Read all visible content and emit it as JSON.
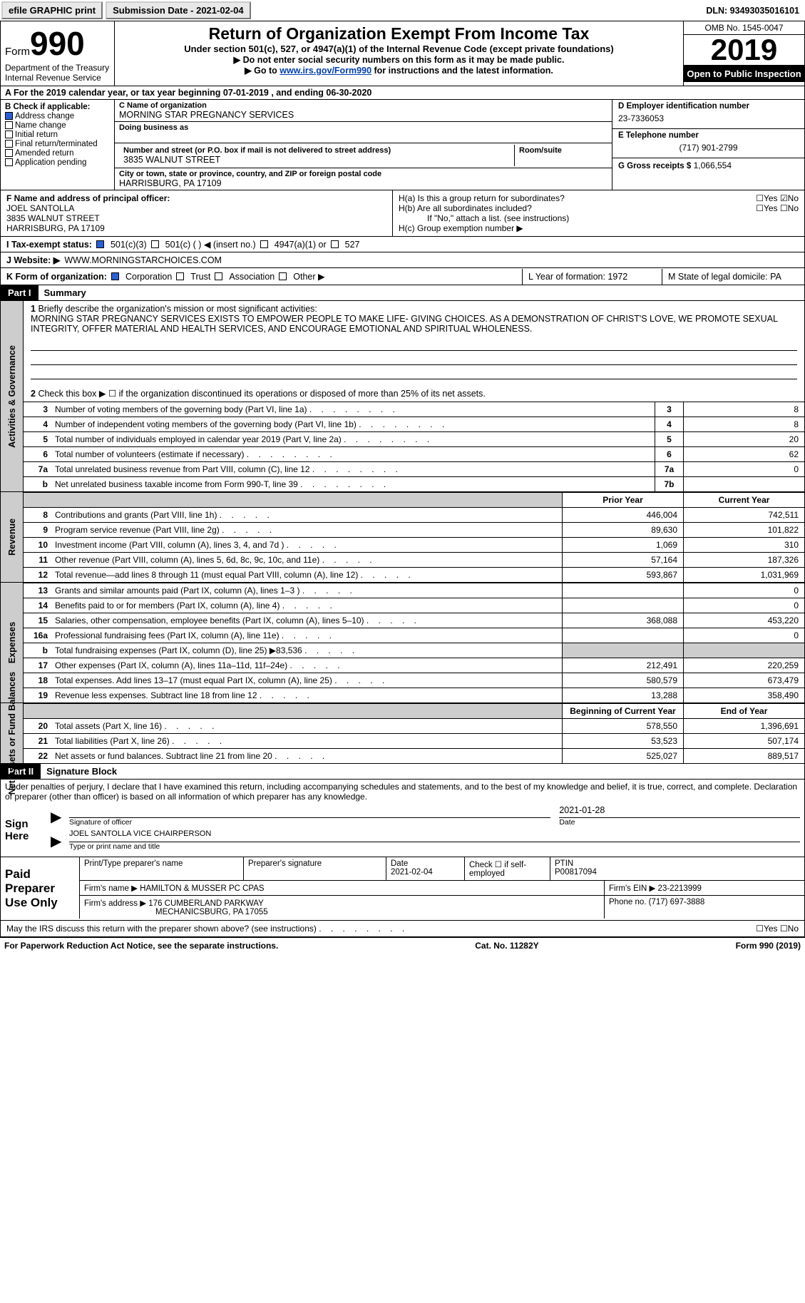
{
  "topbar": {
    "efile": "efile GRAPHIC print",
    "submission": "Submission Date - 2021-02-04",
    "dln": "DLN: 93493035016101"
  },
  "header": {
    "form_word": "Form",
    "form_num": "990",
    "dept": "Department of the Treasury\nInternal Revenue Service",
    "title": "Return of Organization Exempt From Income Tax",
    "subtitle": "Under section 501(c), 527, or 4947(a)(1) of the Internal Revenue Code (except private foundations)",
    "note1": "▶ Do not enter social security numbers on this form as it may be made public.",
    "note2_pre": "▶ Go to ",
    "note2_link": "www.irs.gov/Form990",
    "note2_post": " for instructions and the latest information.",
    "omb": "OMB No. 1545-0047",
    "year": "2019",
    "public": "Open to Public Inspection"
  },
  "period": "For the 2019 calendar year, or tax year beginning 07-01-2019     , and ending 06-30-2020",
  "sectionB": {
    "hdr": "B Check if applicable:",
    "items": [
      "Address change",
      "Name change",
      "Initial return",
      "Final return/terminated",
      "Amended return",
      "Application pending"
    ],
    "checked": [
      true,
      false,
      false,
      false,
      false,
      false
    ]
  },
  "sectionC": {
    "name_lbl": "C Name of organization",
    "name": "MORNING STAR PREGNANCY SERVICES",
    "dba_lbl": "Doing business as",
    "addr_lbl": "Number and street (or P.O. box if mail is not delivered to street address)",
    "room_lbl": "Room/suite",
    "addr": "3835 WALNUT STREET",
    "city_lbl": "City or town, state or province, country, and ZIP or foreign postal code",
    "city": "HARRISBURG, PA   17109"
  },
  "sectionD": {
    "ein_lbl": "D Employer identification number",
    "ein": "23-7336053",
    "tel_lbl": "E Telephone number",
    "tel": "(717) 901-2799",
    "gross_lbl": "G Gross receipts $",
    "gross": "1,066,554"
  },
  "sectionF": {
    "lbl": "F  Name and address of principal officer:",
    "name": "JOEL SANTOLLA",
    "addr1": "3835 WALNUT STREET",
    "addr2": "HARRISBURG, PA   17109"
  },
  "sectionH": {
    "ha": "H(a)  Is this a group return for subordinates?",
    "hb": "H(b)  Are all subordinates included?",
    "hb_note": "If \"No,\" attach a list. (see instructions)",
    "hc": "H(c)  Group exemption number ▶"
  },
  "rowI": {
    "lbl": "I    Tax-exempt status:",
    "opts": [
      "501(c)(3)",
      "501(c) (   ) ◀ (insert no.)",
      "4947(a)(1) or",
      "527"
    ]
  },
  "rowJ": {
    "lbl": "J    Website: ▶",
    "val": "WWW.MORNINGSTARCHOICES.COM"
  },
  "rowK": {
    "lbl": "K Form of organization:",
    "opts": [
      "Corporation",
      "Trust",
      "Association",
      "Other ▶"
    ],
    "L": "L Year of formation: 1972",
    "M": "M State of legal domicile: PA"
  },
  "part1": {
    "hdr": "Part I",
    "title": "Summary",
    "q1_lbl": "Briefly describe the organization's mission or most significant activities:",
    "q1": "MORNING STAR PREGNANCY SERVICES EXISTS TO EMPOWER PEOPLE TO MAKE LIFE- GIVING CHOICES. AS A DEMONSTRATION OF CHRIST'S LOVE, WE PROMOTE SEXUAL INTEGRITY, OFFER MATERIAL AND HEALTH SERVICES, AND ENCOURAGE EMOTIONAL AND SPIRITUAL WHOLENESS.",
    "q2": "Check this box ▶ ☐  if the organization discontinued its operations or disposed of more than 25% of its net assets.",
    "lines": [
      {
        "n": "3",
        "t": "Number of voting members of the governing body (Part VI, line 1a)",
        "b": "3",
        "v": "8"
      },
      {
        "n": "4",
        "t": "Number of independent voting members of the governing body (Part VI, line 1b)",
        "b": "4",
        "v": "8"
      },
      {
        "n": "5",
        "t": "Total number of individuals employed in calendar year 2019 (Part V, line 2a)",
        "b": "5",
        "v": "20"
      },
      {
        "n": "6",
        "t": "Total number of volunteers (estimate if necessary)",
        "b": "6",
        "v": "62"
      },
      {
        "n": "7a",
        "t": "Total unrelated business revenue from Part VIII, column (C), line 12",
        "b": "7a",
        "v": "0"
      },
      {
        "n": "b",
        "t": "Net unrelated business taxable income from Form 990-T, line 39",
        "b": "7b",
        "v": ""
      }
    ],
    "col_prior": "Prior Year",
    "col_curr": "Current Year",
    "revenue": [
      {
        "n": "8",
        "t": "Contributions and grants (Part VIII, line 1h)",
        "p": "446,004",
        "c": "742,511"
      },
      {
        "n": "9",
        "t": "Program service revenue (Part VIII, line 2g)",
        "p": "89,630",
        "c": "101,822"
      },
      {
        "n": "10",
        "t": "Investment income (Part VIII, column (A), lines 3, 4, and 7d )",
        "p": "1,069",
        "c": "310"
      },
      {
        "n": "11",
        "t": "Other revenue (Part VIII, column (A), lines 5, 6d, 8c, 9c, 10c, and 11e)",
        "p": "57,164",
        "c": "187,326"
      },
      {
        "n": "12",
        "t": "Total revenue—add lines 8 through 11 (must equal Part VIII, column (A), line 12)",
        "p": "593,867",
        "c": "1,031,969"
      }
    ],
    "expenses": [
      {
        "n": "13",
        "t": "Grants and similar amounts paid (Part IX, column (A), lines 1–3 )",
        "p": "",
        "c": "0"
      },
      {
        "n": "14",
        "t": "Benefits paid to or for members (Part IX, column (A), line 4)",
        "p": "",
        "c": "0"
      },
      {
        "n": "15",
        "t": "Salaries, other compensation, employee benefits (Part IX, column (A), lines 5–10)",
        "p": "368,088",
        "c": "453,220"
      },
      {
        "n": "16a",
        "t": "Professional fundraising fees (Part IX, column (A), line 11e)",
        "p": "",
        "c": "0"
      },
      {
        "n": "b",
        "t": "Total fundraising expenses (Part IX, column (D), line 25) ▶83,536",
        "p": "GRAY",
        "c": "GRAY"
      },
      {
        "n": "17",
        "t": "Other expenses (Part IX, column (A), lines 11a–11d, 11f–24e)",
        "p": "212,491",
        "c": "220,259"
      },
      {
        "n": "18",
        "t": "Total expenses. Add lines 13–17 (must equal Part IX, column (A), line 25)",
        "p": "580,579",
        "c": "673,479"
      },
      {
        "n": "19",
        "t": "Revenue less expenses. Subtract line 18 from line 12",
        "p": "13,288",
        "c": "358,490"
      }
    ],
    "col_begin": "Beginning of Current Year",
    "col_end": "End of Year",
    "netassets": [
      {
        "n": "20",
        "t": "Total assets (Part X, line 16)",
        "p": "578,550",
        "c": "1,396,691"
      },
      {
        "n": "21",
        "t": "Total liabilities (Part X, line 26)",
        "p": "53,523",
        "c": "507,174"
      },
      {
        "n": "22",
        "t": "Net assets or fund balances. Subtract line 21 from line 20",
        "p": "525,027",
        "c": "889,517"
      }
    ]
  },
  "part2": {
    "hdr": "Part II",
    "title": "Signature Block",
    "decl": "Under penalties of perjury, I declare that I have examined this return, including accompanying schedules and statements, and to the best of my knowledge and belief, it is true, correct, and complete. Declaration of preparer (other than officer) is based on all information of which preparer has any knowledge.",
    "sign_here": "Sign Here",
    "sig_officer": "Signature of officer",
    "sig_date_lbl": "Date",
    "sig_date": "2021-01-28",
    "sig_name": "JOEL SANTOLLA  VICE CHAIRPERSON",
    "sig_name_lbl": "Type or print name and title",
    "paid": "Paid Preparer Use Only",
    "prep_name_lbl": "Print/Type preparer's name",
    "prep_sig_lbl": "Preparer's signature",
    "prep_date_lbl": "Date",
    "prep_date": "2021-02-04",
    "prep_check": "Check ☐ if self-employed",
    "ptin_lbl": "PTIN",
    "ptin": "P00817094",
    "firm_name_lbl": "Firm's name    ▶",
    "firm_name": "HAMILTON & MUSSER PC CPAS",
    "firm_ein_lbl": "Firm's EIN ▶",
    "firm_ein": "23-2213999",
    "firm_addr_lbl": "Firm's address ▶",
    "firm_addr1": "176 CUMBERLAND PARKWAY",
    "firm_addr2": "MECHANICSBURG, PA   17055",
    "phone_lbl": "Phone no.",
    "phone": "(717) 697-3888",
    "discuss": "May the IRS discuss this return with the preparer shown above? (see instructions)"
  },
  "footer": {
    "left": "For Paperwork Reduction Act Notice, see the separate instructions.",
    "mid": "Cat. No. 11282Y",
    "right": "Form 990 (2019)"
  },
  "labels": {
    "yes": "Yes",
    "no": "No",
    "activities": "Activities & Governance",
    "revenue": "Revenue",
    "expenses": "Expenses",
    "netassets": "Net Assets or Fund Balances"
  }
}
